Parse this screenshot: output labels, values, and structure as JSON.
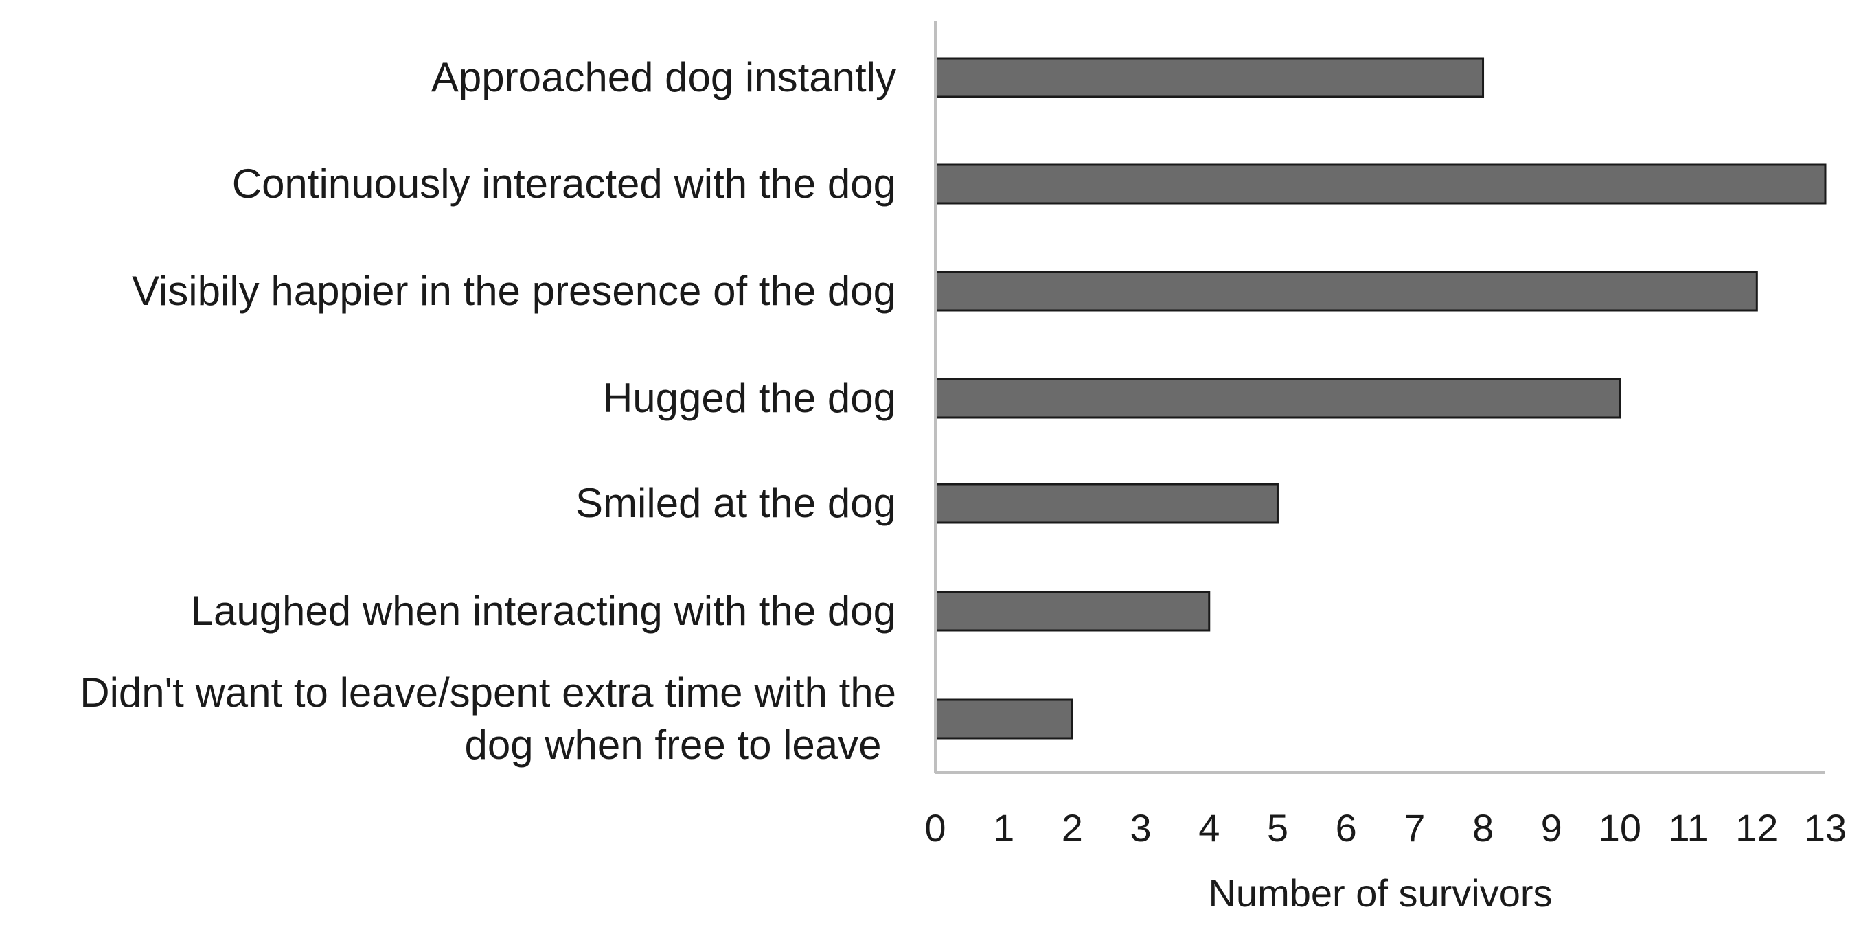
{
  "chart_data": {
    "type": "bar",
    "orientation": "horizontal",
    "categories": [
      "Approached dog instantly",
      "Continuously interacted with the dog",
      "Visibily happier in the presence of the dog",
      "Hugged the dog",
      "Smiled at the dog",
      "Laughed when interacting with the dog",
      "Didn't want to leave/spent extra time with the dog when free to leave"
    ],
    "category_lines": [
      [
        "Approached dog instantly"
      ],
      [
        "Continuously interacted with the dog"
      ],
      [
        "Visibily happier in the presence of the dog"
      ],
      [
        "Hugged the dog"
      ],
      [
        "Smiled at the dog"
      ],
      [
        "Laughed when interacting with the dog"
      ],
      [
        "Didn't want to leave/spent extra time with the",
        "dog when free to leave"
      ]
    ],
    "values": [
      8,
      13,
      12,
      10,
      5,
      4,
      2
    ],
    "title": "",
    "xlabel": "Number of survivors",
    "ylabel": "",
    "xlim": [
      0,
      13
    ],
    "xticks": [
      0,
      1,
      2,
      3,
      4,
      5,
      6,
      7,
      8,
      9,
      10,
      11,
      12,
      13
    ],
    "grid": false,
    "legend": "none",
    "colors": {
      "bar_fill": "#6b6b6b",
      "bar_stroke": "#1a1a1a",
      "axis": "#bfbfbf",
      "text": "#1a1a1a"
    }
  }
}
